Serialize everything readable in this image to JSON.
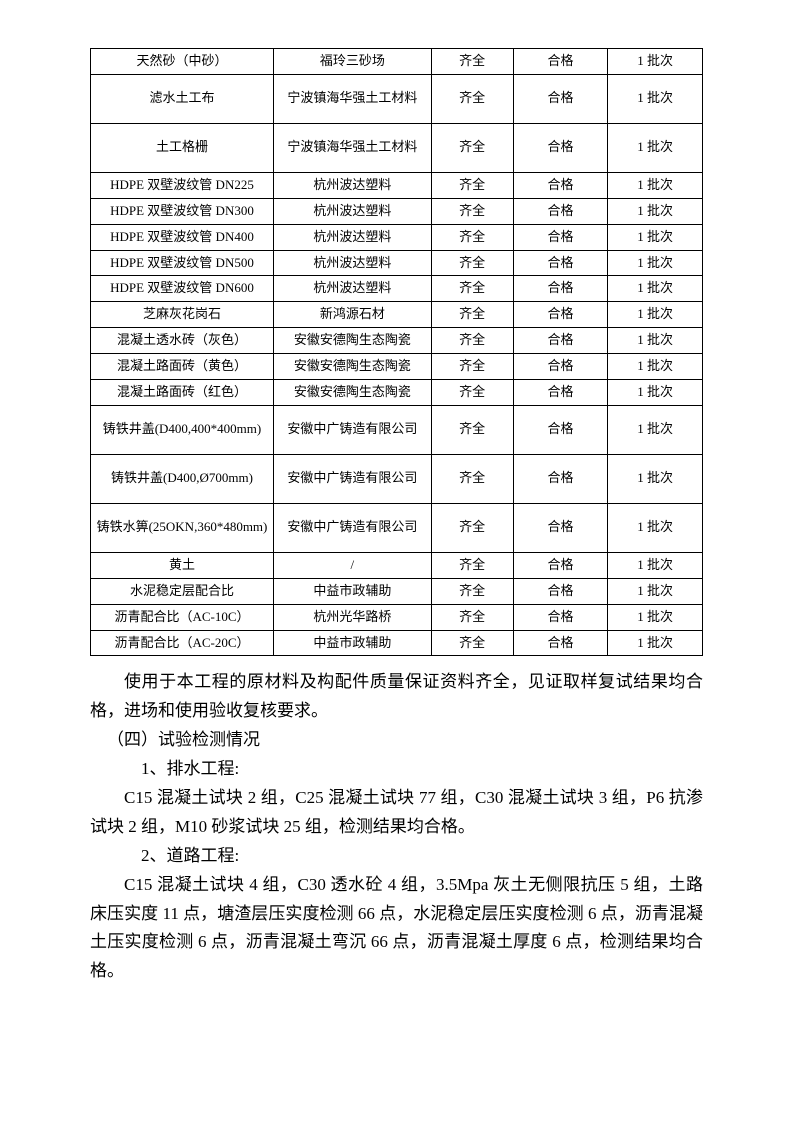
{
  "table": {
    "rows": [
      {
        "c1": "天然砂（中砂）",
        "c2": "福玲三砂场",
        "c3": "齐全",
        "c4": "合格",
        "c5": "1 批次",
        "tall": false
      },
      {
        "c1": "滤水土工布",
        "c2": "宁波镇海华强土工材料",
        "c3": "齐全",
        "c4": "合格",
        "c5": "1 批次",
        "tall": true
      },
      {
        "c1": "土工格栅",
        "c2": "宁波镇海华强土工材料",
        "c3": "齐全",
        "c4": "合格",
        "c5": "1 批次",
        "tall": true
      },
      {
        "c1": "HDPE 双壁波纹管 DN225",
        "c2": "杭州波达塑料",
        "c3": "齐全",
        "c4": "合格",
        "c5": "1 批次",
        "tall": false
      },
      {
        "c1": "HDPE 双壁波纹管 DN300",
        "c2": "杭州波达塑料",
        "c3": "齐全",
        "c4": "合格",
        "c5": "1 批次",
        "tall": false
      },
      {
        "c1": "HDPE 双壁波纹管 DN400",
        "c2": "杭州波达塑料",
        "c3": "齐全",
        "c4": "合格",
        "c5": "1 批次",
        "tall": false
      },
      {
        "c1": "HDPE 双壁波纹管 DN500",
        "c2": "杭州波达塑料",
        "c3": "齐全",
        "c4": "合格",
        "c5": "1 批次",
        "tall": false
      },
      {
        "c1": "HDPE 双壁波纹管 DN600",
        "c2": "杭州波达塑料",
        "c3": "齐全",
        "c4": "合格",
        "c5": "1 批次",
        "tall": false
      },
      {
        "c1": "芝麻灰花岗石",
        "c2": "新鸿源石材",
        "c3": "齐全",
        "c4": "合格",
        "c5": "1 批次",
        "tall": false
      },
      {
        "c1": "混凝土透水砖（灰色）",
        "c2": "安徽安德陶生态陶瓷",
        "c3": "齐全",
        "c4": "合格",
        "c5": "1 批次",
        "tall": false
      },
      {
        "c1": "混凝土路面砖（黄色）",
        "c2": "安徽安德陶生态陶瓷",
        "c3": "齐全",
        "c4": "合格",
        "c5": "1 批次",
        "tall": false
      },
      {
        "c1": "混凝土路面砖（红色）",
        "c2": "安徽安德陶生态陶瓷",
        "c3": "齐全",
        "c4": "合格",
        "c5": "1 批次",
        "tall": false
      },
      {
        "c1": "铸铁井盖(D400,400*400mm)",
        "c2": "安徽中广铸造有限公司",
        "c3": "齐全",
        "c4": "合格",
        "c5": "1 批次",
        "tall": true
      },
      {
        "c1": "铸铁井盖(D400,Ø700mm)",
        "c2": "安徽中广铸造有限公司",
        "c3": "齐全",
        "c4": "合格",
        "c5": "1 批次",
        "tall": true
      },
      {
        "c1": "铸铁水箅(25OKN,360*480mm)",
        "c2": "安徽中广铸造有限公司",
        "c3": "齐全",
        "c4": "合格",
        "c5": "1 批次",
        "tall": true
      },
      {
        "c1": "黄土",
        "c2": "/",
        "c3": "齐全",
        "c4": "合格",
        "c5": "1 批次",
        "tall": false
      },
      {
        "c1": "水泥稳定层配合比",
        "c2": "中益市政辅助",
        "c3": "齐全",
        "c4": "合格",
        "c5": "1 批次",
        "tall": false
      },
      {
        "c1": "沥青配合比（AC-10C）",
        "c2": "杭州光华路桥",
        "c3": "齐全",
        "c4": "合格",
        "c5": "1 批次",
        "tall": false
      },
      {
        "c1": "沥青配合比（AC-20C）",
        "c2": "中益市政辅助",
        "c3": "齐全",
        "c4": "合格",
        "c5": "1 批次",
        "tall": false
      }
    ]
  },
  "paragraphs": {
    "p1": "使用于本工程的原材料及构配件质量保证资料齐全，见证取样复试结果均合格，进场和使用验收复核要求。",
    "p2": "（四）试验检测情况",
    "p3": "1、排水工程:",
    "p4": "C15 混凝土试块 2 组，C25 混凝土试块 77 组，C30 混凝土试块 3 组，P6 抗渗试块 2 组，M10 砂浆试块 25 组，检测结果均合格。",
    "p5": "2、道路工程:",
    "p6": "C15 混凝土试块 4 组，C30 透水砼 4 组，3.5Mpa 灰土无侧限抗压 5 组，土路床压实度 11 点，塘渣层压实度检测 66 点，水泥稳定层压实度检测 6 点，沥青混凝土压实度检测 6 点，沥青混凝土弯沉 66 点，沥青混凝土厚度 6 点，检测结果均合格。"
  }
}
